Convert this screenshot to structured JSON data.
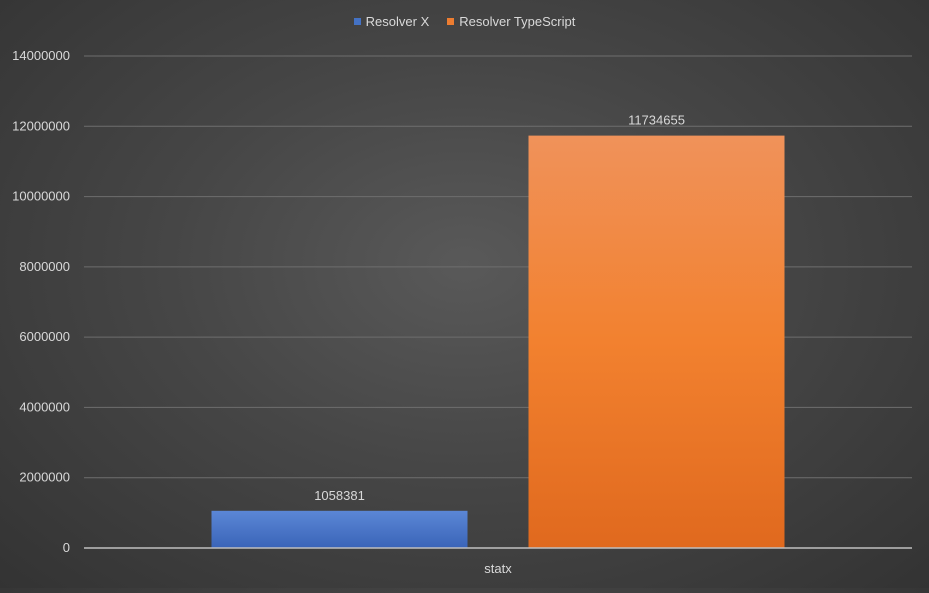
{
  "chart_data": {
    "type": "bar",
    "categories": [
      "statx"
    ],
    "series": [
      {
        "name": "Resolver X",
        "values": [
          1058381
        ],
        "color": "#4472c4"
      },
      {
        "name": "Resolver TypeScript",
        "values": [
          11734655
        ],
        "color": "#ed7d31"
      }
    ],
    "ylim": [
      0,
      14000000
    ],
    "yticks": [
      "0",
      "2000000",
      "4000000",
      "6000000",
      "8000000",
      "10000000",
      "12000000",
      "14000000"
    ],
    "grid": true,
    "legend_position": "top-center",
    "data_labels": [
      "1058381",
      "11734655"
    ]
  }
}
